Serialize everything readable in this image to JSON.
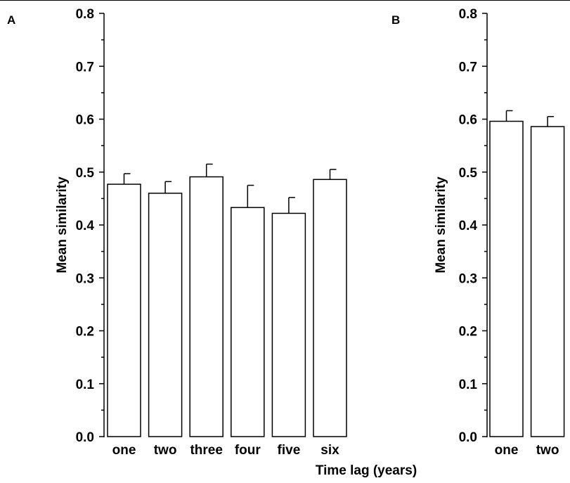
{
  "chart_data": [
    {
      "panel_label": "A",
      "type": "bar",
      "categories": [
        "one",
        "two",
        "three",
        "four",
        "five",
        "six"
      ],
      "values": [
        0.477,
        0.46,
        0.491,
        0.433,
        0.422,
        0.486
      ],
      "error": [
        0.02,
        0.022,
        0.024,
        0.042,
        0.03,
        0.019
      ],
      "xlabel": "Time lag (years)",
      "ylabel": "Mean similarity",
      "ylim": [
        0.0,
        0.8
      ],
      "yticks": [
        "0.0",
        "0.1",
        "0.2",
        "0.3",
        "0.4",
        "0.5",
        "0.6",
        "0.7",
        "0.8"
      ],
      "bar_fill": "#ffffff",
      "grid": false
    },
    {
      "panel_label": "B",
      "type": "bar",
      "categories": [
        "one",
        "two"
      ],
      "values": [
        0.596,
        0.586
      ],
      "error": [
        0.02,
        0.019
      ],
      "xlabel": "",
      "ylabel": "Mean similarity",
      "ylim": [
        0.0,
        0.8
      ],
      "yticks": [
        "0.0",
        "0.1",
        "0.2",
        "0.3",
        "0.4",
        "0.5",
        "0.6",
        "0.7",
        "0.8"
      ],
      "bar_fill": "#ffffff",
      "grid": false
    }
  ]
}
